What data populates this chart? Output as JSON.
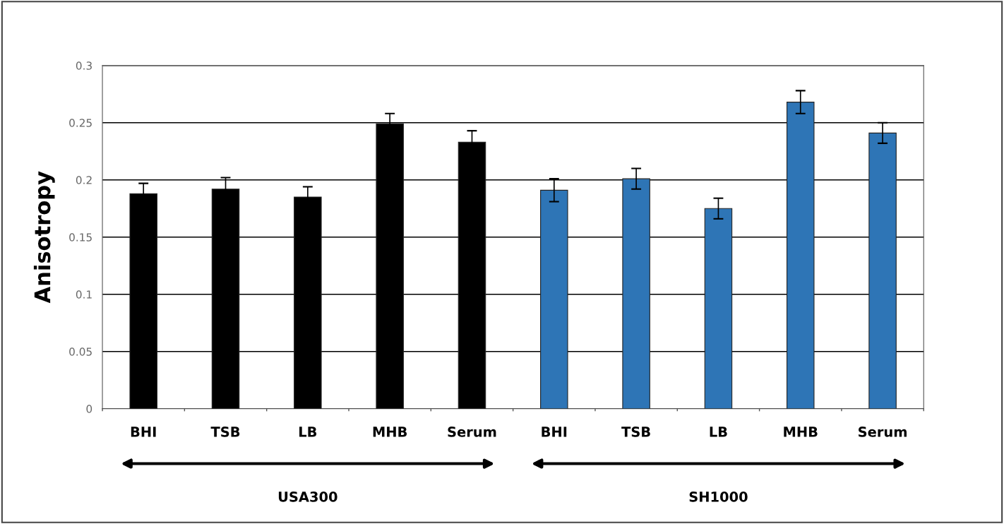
{
  "chart_data": {
    "type": "bar",
    "ylabel": "Anisotropy",
    "categories": [
      "BHI",
      "TSB",
      "LB",
      "MHB",
      "Serum",
      "BHI",
      "TSB",
      "LB",
      "MHB",
      "Serum"
    ],
    "values": [
      0.188,
      0.192,
      0.185,
      0.249,
      0.233,
      0.191,
      0.201,
      0.175,
      0.268,
      0.241
    ],
    "errors": [
      0.009,
      0.01,
      0.009,
      0.009,
      0.01,
      0.01,
      0.009,
      0.009,
      0.01,
      0.009
    ],
    "colors": [
      "#000000",
      "#000000",
      "#000000",
      "#000000",
      "#000000",
      "#2e75b6",
      "#2e75b6",
      "#2e75b6",
      "#2e75b6",
      "#2e75b6"
    ],
    "ylim": [
      0,
      0.3
    ],
    "yticks": [
      0,
      0.05,
      0.1,
      0.15,
      0.2,
      0.25,
      0.3
    ],
    "grid": "y",
    "annotations": [
      "USA300",
      "SH1000"
    ]
  }
}
